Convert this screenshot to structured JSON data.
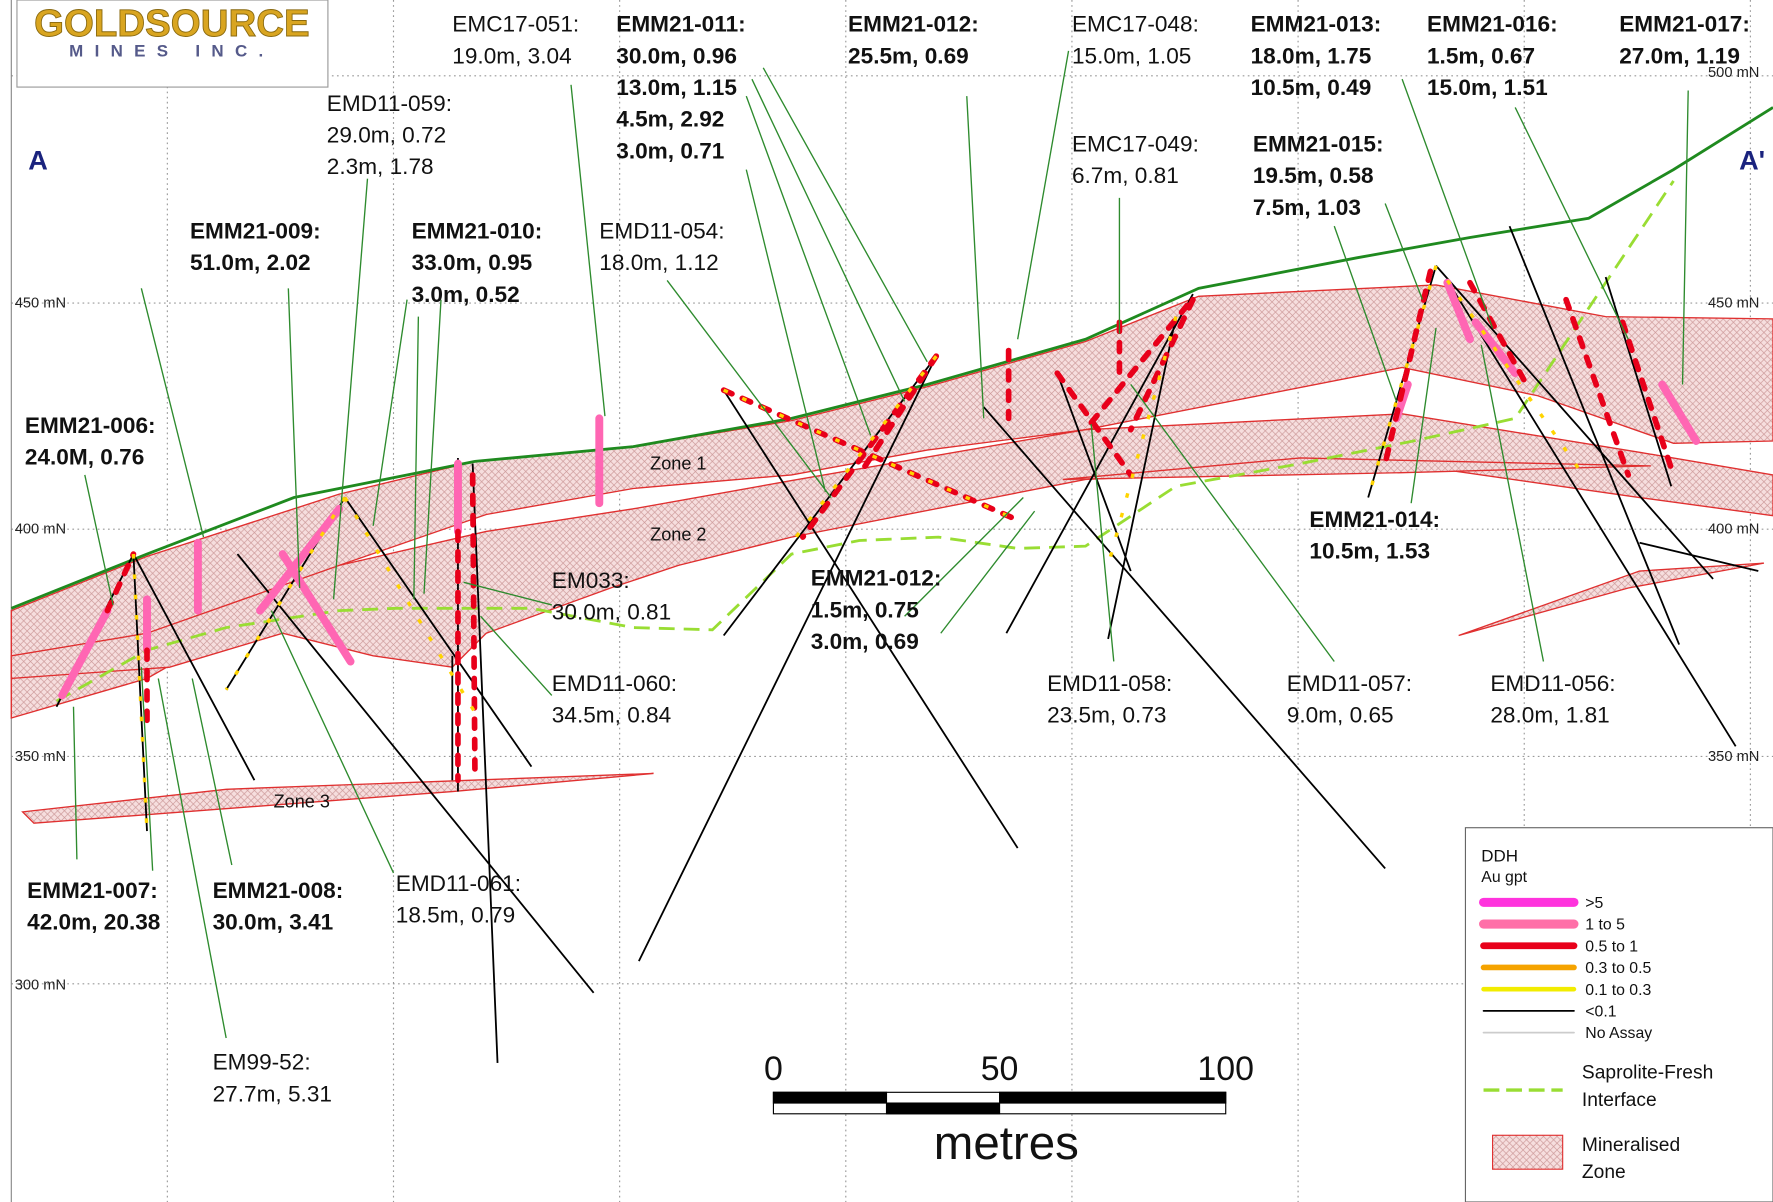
{
  "logo": {
    "line1": "GOLDSOURCE",
    "line2": "MINES INC."
  },
  "section": {
    "start": "A",
    "end": "A'"
  },
  "elevations_left": [
    "450 mN",
    "400 mN",
    "350 mN",
    "300 mN"
  ],
  "elevations_right": [
    "500 mN",
    "450 mN",
    "400 mN",
    "350 mN"
  ],
  "zones": [
    "Zone 1",
    "Zone 2",
    "Zone 3"
  ],
  "callouts": [
    {
      "name": "EMC17-051:",
      "lines": [
        "19.0m, 3.04"
      ]
    },
    {
      "name": "EMM21-011:",
      "lines": [
        "30.0m, 0.96",
        "13.0m, 1.15",
        "4.5m, 2.92",
        "3.0m, 0.71"
      ]
    },
    {
      "name": "EMM21-012:",
      "lines": [
        "25.5m, 0.69"
      ]
    },
    {
      "name": "EMC17-048:",
      "lines": [
        "15.0m, 1.05"
      ]
    },
    {
      "name": "EMM21-013:",
      "lines": [
        "18.0m, 1.75",
        "10.5m, 0.49"
      ]
    },
    {
      "name": "EMM21-016:",
      "lines": [
        "1.5m, 0.67",
        "15.0m, 1.51"
      ]
    },
    {
      "name": "EMM21-017:",
      "lines": [
        "27.0m, 1.19"
      ]
    },
    {
      "name": "EMD11-059:",
      "lines": [
        "29.0m, 0.72",
        "2.3m, 1.78"
      ]
    },
    {
      "name": "EMC17-049:",
      "lines": [
        "6.7m, 0.81"
      ]
    },
    {
      "name": "EMM21-015:",
      "lines": [
        "19.5m, 0.58",
        "7.5m, 1.03"
      ]
    },
    {
      "name": "EMD11-054:",
      "lines": [
        "18.0m, 1.12"
      ]
    },
    {
      "name": "EMM21-009:",
      "lines": [
        "51.0m, 2.02"
      ]
    },
    {
      "name": "EMM21-010:",
      "lines": [
        "33.0m, 0.95",
        "3.0m, 0.52"
      ]
    },
    {
      "name": "EMM21-006:",
      "lines": [
        "24.0M, 0.76"
      ]
    },
    {
      "name": "EMM21-014:",
      "lines": [
        "10.5m, 1.53"
      ]
    },
    {
      "name": "EM033:",
      "lines": [
        "30.0m, 0.81"
      ]
    },
    {
      "name": "EMM21-012:",
      "lines": [
        "1.5m, 0.75",
        "3.0m, 0.69"
      ]
    },
    {
      "name": "EMD11-060:",
      "lines": [
        "34.5m, 0.84"
      ]
    },
    {
      "name": "EMD11-058:",
      "lines": [
        "23.5m, 0.73"
      ]
    },
    {
      "name": "EMD11-057:",
      "lines": [
        "9.0m, 0.65"
      ]
    },
    {
      "name": "EMD11-056:",
      "lines": [
        "28.0m, 1.81"
      ]
    },
    {
      "name": "EMM21-007:",
      "lines": [
        "42.0m, 20.38"
      ]
    },
    {
      "name": "EMM21-008:",
      "lines": [
        "30.0m, 3.41"
      ]
    },
    {
      "name": "EMD11-061:",
      "lines": [
        "18.5m, 0.79"
      ]
    },
    {
      "name": "EM99-52:",
      "lines": [
        "27.7m, 5.31"
      ]
    }
  ],
  "legend": {
    "title": "DDH",
    "subtitle": "Au gpt",
    "grades": [
      {
        "label": ">5",
        "color": "#ff33dd"
      },
      {
        "label": "1    to  5",
        "color": "#ff6fa8"
      },
      {
        "label": "0.5  to  1",
        "color": "#e8001a"
      },
      {
        "label": "0.3  to  0.5",
        "color": "#f5a300"
      },
      {
        "label": "0.1  to  0.3",
        "color": "#f2ec00"
      },
      {
        "label": "<0.1",
        "color": "#000000"
      },
      {
        "label": "No Assay",
        "color": "#cccccc"
      }
    ],
    "interface": [
      "Saprolite-Fresh",
      "Interface"
    ],
    "zone": [
      "Mineralised",
      "Zone"
    ]
  },
  "scale": {
    "ticks": [
      "0",
      "50",
      "100"
    ],
    "unit": "metres"
  }
}
